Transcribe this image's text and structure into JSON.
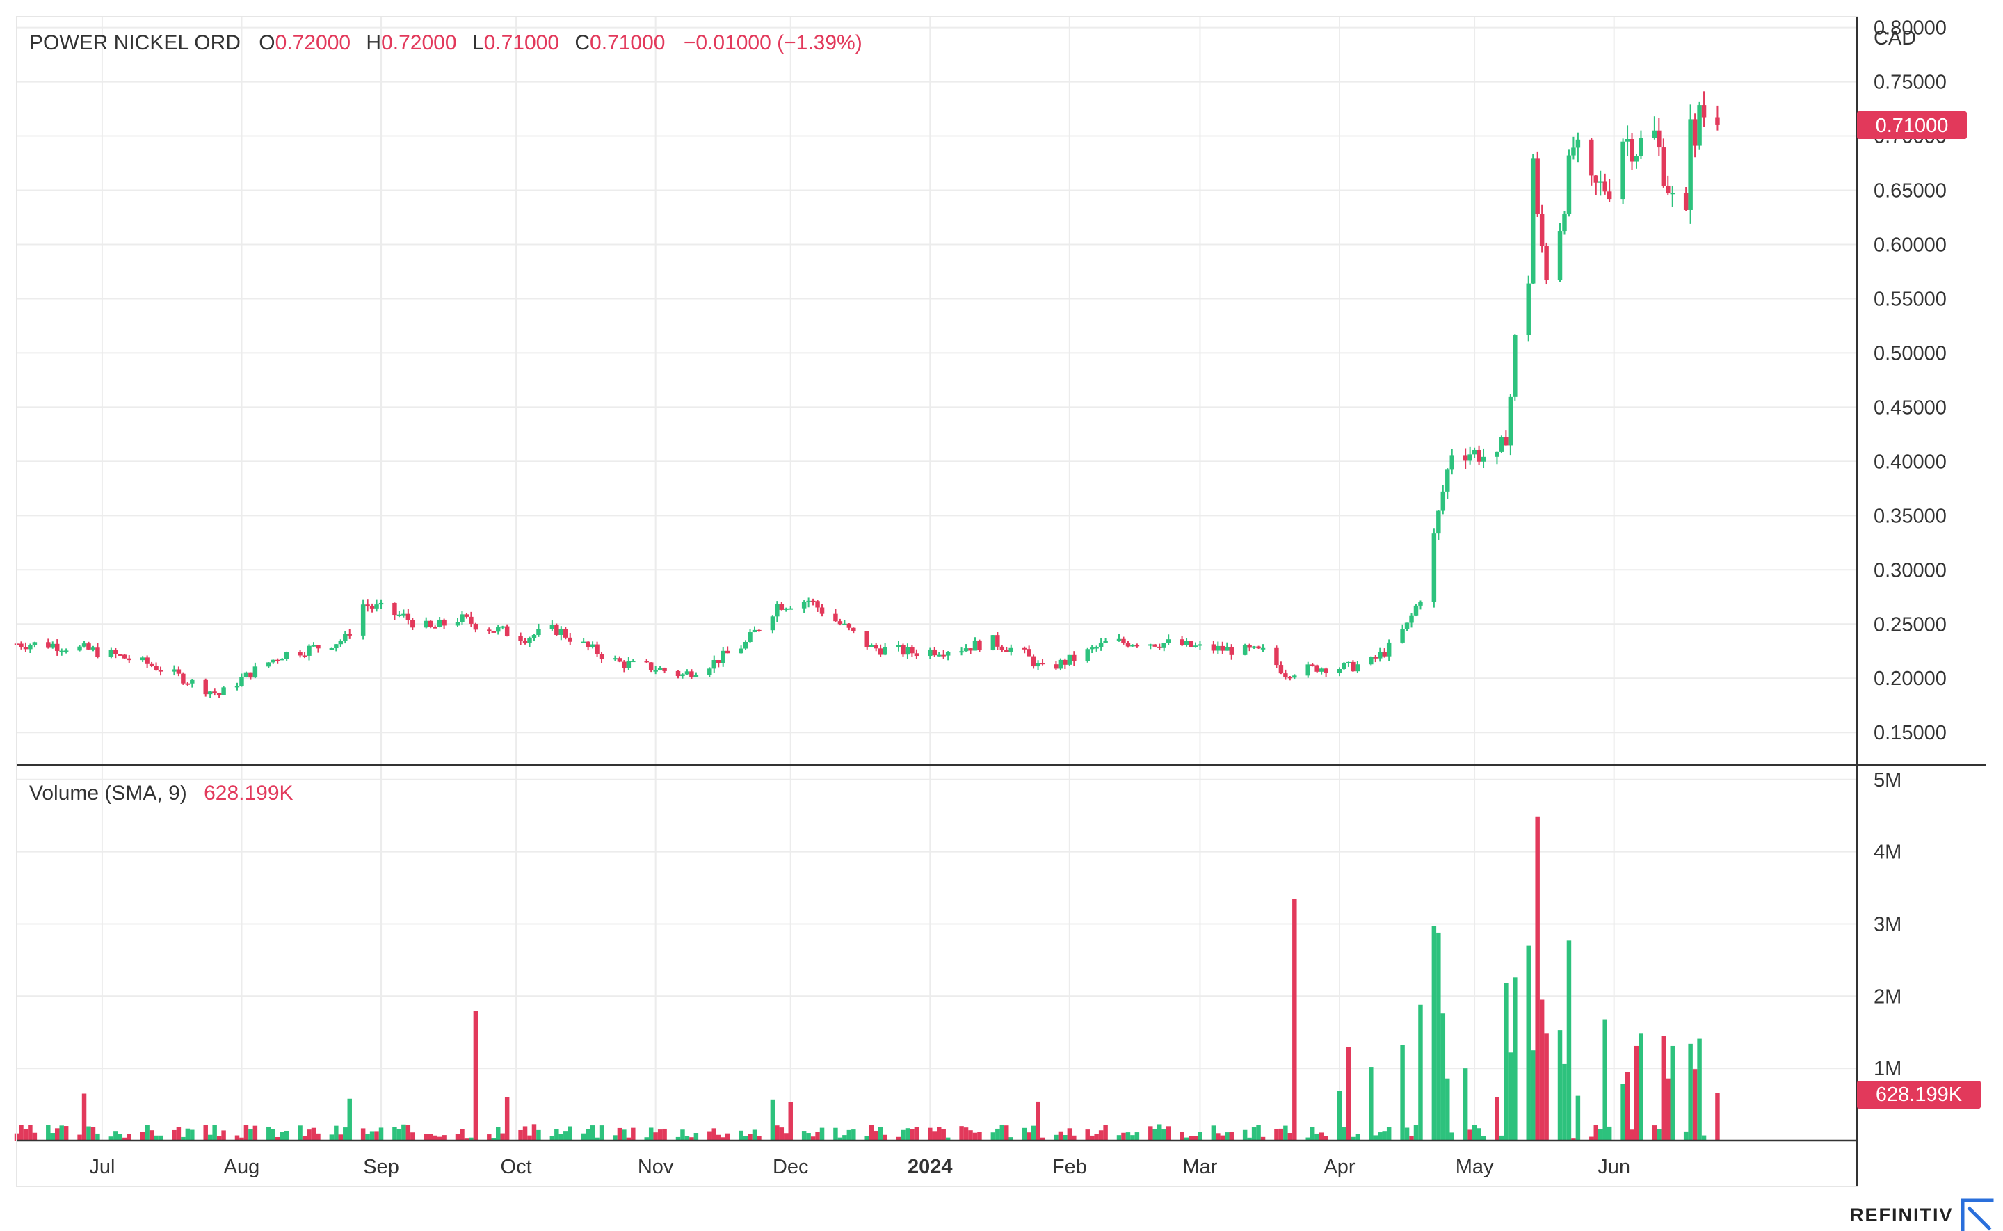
{
  "header": {
    "symbol": "POWER NICKEL ORD",
    "open_label": "O",
    "open_value": "0.72000",
    "high_label": "H",
    "high_value": "0.72000",
    "low_label": "L",
    "low_value": "0.71000",
    "close_label": "C",
    "close_value": "0.71000",
    "change": "−0.01000 (−1.39%)",
    "currency": "CAD"
  },
  "volume_legend": {
    "label": "Volume (SMA, 9)",
    "value": "628.199K"
  },
  "badges": {
    "price": "0.71000",
    "volume": "628.199K"
  },
  "brand": "REFINITIV",
  "colors": {
    "up": "#2dc27d",
    "down": "#e2395b",
    "accent": "#e2395b",
    "grid": "#ececec",
    "axis": "#333333"
  },
  "chart_data": [
    {
      "type": "candlestick",
      "title": "POWER NICKEL ORD",
      "y_axis_label": "CAD",
      "ylim": [
        0.12,
        0.81
      ],
      "yticks": [
        "0.15000",
        "0.20000",
        "0.25000",
        "0.30000",
        "0.35000",
        "0.40000",
        "0.45000",
        "0.50000",
        "0.55000",
        "0.60000",
        "0.65000",
        "0.70000",
        "0.75000",
        "0.80000"
      ],
      "x_ticks": [
        {
          "label": "Jul",
          "date": "2023-07-01"
        },
        {
          "label": "Aug",
          "date": "2023-08-01"
        },
        {
          "label": "Sep",
          "date": "2023-09-01"
        },
        {
          "label": "Oct",
          "date": "2023-10-01"
        },
        {
          "label": "Nov",
          "date": "2023-11-01"
        },
        {
          "label": "Dec",
          "date": "2023-12-01"
        },
        {
          "label": "2024",
          "date": "2024-01-01"
        },
        {
          "label": "Feb",
          "date": "2024-02-01"
        },
        {
          "label": "Mar",
          "date": "2024-03-01"
        },
        {
          "label": "Apr",
          "date": "2024-04-01"
        },
        {
          "label": "May",
          "date": "2024-05-01"
        },
        {
          "label": "Jun",
          "date": "2024-06-01"
        }
      ],
      "x_range": [
        "2023-06-12",
        "2024-07-25"
      ],
      "grid": true,
      "last_price": 0.71,
      "anchors": [
        {
          "date": "2023-06-12",
          "close": 0.232
        },
        {
          "date": "2023-06-20",
          "close": 0.231
        },
        {
          "date": "2023-06-28",
          "close": 0.226
        },
        {
          "date": "2023-07-05",
          "close": 0.22
        },
        {
          "date": "2023-07-12",
          "close": 0.212
        },
        {
          "date": "2023-07-19",
          "close": 0.2
        },
        {
          "date": "2023-07-24",
          "close": 0.19
        },
        {
          "date": "2023-07-27",
          "close": 0.185
        },
        {
          "date": "2023-08-03",
          "close": 0.205
        },
        {
          "date": "2023-08-10",
          "close": 0.222
        },
        {
          "date": "2023-08-17",
          "close": 0.228
        },
        {
          "date": "2023-08-24",
          "close": 0.236
        },
        {
          "date": "2023-08-28",
          "close": 0.268
        },
        {
          "date": "2023-09-05",
          "close": 0.258
        },
        {
          "date": "2023-09-12",
          "close": 0.245
        },
        {
          "date": "2023-09-18",
          "close": 0.255
        },
        {
          "date": "2023-09-26",
          "close": 0.245
        },
        {
          "date": "2023-10-03",
          "close": 0.238
        },
        {
          "date": "2023-10-10",
          "close": 0.245
        },
        {
          "date": "2023-10-17",
          "close": 0.228
        },
        {
          "date": "2023-10-24",
          "close": 0.214
        },
        {
          "date": "2023-10-31",
          "close": 0.21
        },
        {
          "date": "2023-11-07",
          "close": 0.203
        },
        {
          "date": "2023-11-14",
          "close": 0.215
        },
        {
          "date": "2023-11-21",
          "close": 0.232
        },
        {
          "date": "2023-11-28",
          "close": 0.268
        },
        {
          "date": "2023-12-05",
          "close": 0.272
        },
        {
          "date": "2023-12-12",
          "close": 0.25
        },
        {
          "date": "2023-12-19",
          "close": 0.228
        },
        {
          "date": "2023-12-28",
          "close": 0.224
        },
        {
          "date": "2024-01-08",
          "close": 0.228
        },
        {
          "date": "2024-01-15",
          "close": 0.234
        },
        {
          "date": "2024-01-22",
          "close": 0.222
        },
        {
          "date": "2024-01-26",
          "close": 0.208
        },
        {
          "date": "2024-02-02",
          "close": 0.218
        },
        {
          "date": "2024-02-09",
          "close": 0.232
        },
        {
          "date": "2024-02-16",
          "close": 0.234
        },
        {
          "date": "2024-02-23",
          "close": 0.232
        },
        {
          "date": "2024-03-01",
          "close": 0.228
        },
        {
          "date": "2024-03-08",
          "close": 0.226
        },
        {
          "date": "2024-03-15",
          "close": 0.224
        },
        {
          "date": "2024-03-20",
          "close": 0.205
        },
        {
          "date": "2024-03-27",
          "close": 0.21
        },
        {
          "date": "2024-04-03",
          "close": 0.21
        },
        {
          "date": "2024-04-08",
          "close": 0.215
        },
        {
          "date": "2024-04-12",
          "close": 0.228
        },
        {
          "date": "2024-04-16",
          "close": 0.248
        },
        {
          "date": "2024-04-19",
          "close": 0.275
        },
        {
          "date": "2024-04-22",
          "close": 0.33
        },
        {
          "date": "2024-04-24",
          "close": 0.372
        },
        {
          "date": "2024-04-26",
          "close": 0.41
        },
        {
          "date": "2024-05-01",
          "close": 0.408
        },
        {
          "date": "2024-05-06",
          "close": 0.4
        },
        {
          "date": "2024-05-08",
          "close": 0.425
        },
        {
          "date": "2024-05-09",
          "close": 0.46
        },
        {
          "date": "2024-05-10",
          "close": 0.51
        },
        {
          "date": "2024-05-13",
          "close": 0.57
        },
        {
          "date": "2024-05-14",
          "close": 0.68
        },
        {
          "date": "2024-05-15",
          "close": 0.62
        },
        {
          "date": "2024-05-17",
          "close": 0.575
        },
        {
          "date": "2024-05-20",
          "close": 0.62
        },
        {
          "date": "2024-05-23",
          "close": 0.69
        },
        {
          "date": "2024-05-27",
          "close": 0.65
        },
        {
          "date": "2024-05-31",
          "close": 0.655
        },
        {
          "date": "2024-06-03",
          "close": 0.7
        },
        {
          "date": "2024-06-06",
          "close": 0.69
        },
        {
          "date": "2024-06-10",
          "close": 0.7
        },
        {
          "date": "2024-06-12",
          "close": 0.67
        },
        {
          "date": "2024-06-14",
          "close": 0.64
        },
        {
          "date": "2024-06-17",
          "close": 0.62
        },
        {
          "date": "2024-06-18",
          "close": 0.73
        },
        {
          "date": "2024-06-19",
          "close": 0.68
        },
        {
          "date": "2024-06-20",
          "close": 0.73
        },
        {
          "date": "2024-06-21",
          "close": 0.72
        },
        {
          "date": "2024-06-24",
          "close": 0.71
        }
      ]
    },
    {
      "type": "bar",
      "title": "Volume (SMA, 9)",
      "ylim": [
        0,
        5200000
      ],
      "yticks": [
        "1M",
        "2M",
        "3M",
        "4M",
        "5M"
      ],
      "last_value": "628.199K",
      "baseline_volume": 120000,
      "spikes": [
        {
          "date": "2023-06-27",
          "volume": 650000,
          "color": "down"
        },
        {
          "date": "2023-08-25",
          "volume": 580000,
          "color": "up"
        },
        {
          "date": "2023-09-22",
          "volume": 1800000,
          "color": "down"
        },
        {
          "date": "2023-09-29",
          "volume": 600000,
          "color": "down"
        },
        {
          "date": "2023-11-27",
          "volume": 570000,
          "color": "up"
        },
        {
          "date": "2023-12-01",
          "volume": 530000,
          "color": "down"
        },
        {
          "date": "2024-01-25",
          "volume": 540000,
          "color": "down"
        },
        {
          "date": "2024-03-22",
          "volume": 3350000,
          "color": "down"
        },
        {
          "date": "2024-04-01",
          "volume": 690000,
          "color": "up"
        },
        {
          "date": "2024-04-03",
          "volume": 1300000,
          "color": "down"
        },
        {
          "date": "2024-04-08",
          "volume": 1020000,
          "color": "up"
        },
        {
          "date": "2024-04-15",
          "volume": 1320000,
          "color": "up"
        },
        {
          "date": "2024-04-19",
          "volume": 1880000,
          "color": "up"
        },
        {
          "date": "2024-04-22",
          "volume": 2970000,
          "color": "up"
        },
        {
          "date": "2024-04-23",
          "volume": 2880000,
          "color": "up"
        },
        {
          "date": "2024-04-24",
          "volume": 1760000,
          "color": "up"
        },
        {
          "date": "2024-04-25",
          "volume": 860000,
          "color": "up"
        },
        {
          "date": "2024-04-29",
          "volume": 1000000,
          "color": "up"
        },
        {
          "date": "2024-05-06",
          "volume": 600000,
          "color": "down"
        },
        {
          "date": "2024-05-08",
          "volume": 2180000,
          "color": "up"
        },
        {
          "date": "2024-05-09",
          "volume": 1220000,
          "color": "up"
        },
        {
          "date": "2024-05-10",
          "volume": 2260000,
          "color": "up"
        },
        {
          "date": "2024-05-13",
          "volume": 2700000,
          "color": "up"
        },
        {
          "date": "2024-05-14",
          "volume": 1250000,
          "color": "up"
        },
        {
          "date": "2024-05-15",
          "volume": 4480000,
          "color": "down"
        },
        {
          "date": "2024-05-16",
          "volume": 1950000,
          "color": "down"
        },
        {
          "date": "2024-05-17",
          "volume": 1480000,
          "color": "down"
        },
        {
          "date": "2024-05-20",
          "volume": 1530000,
          "color": "up"
        },
        {
          "date": "2024-05-21",
          "volume": 1060000,
          "color": "up"
        },
        {
          "date": "2024-05-22",
          "volume": 2770000,
          "color": "up"
        },
        {
          "date": "2024-05-24",
          "volume": 620000,
          "color": "up"
        },
        {
          "date": "2024-05-30",
          "volume": 1680000,
          "color": "up"
        },
        {
          "date": "2024-06-03",
          "volume": 780000,
          "color": "up"
        },
        {
          "date": "2024-06-04",
          "volume": 950000,
          "color": "down"
        },
        {
          "date": "2024-06-06",
          "volume": 1310000,
          "color": "down"
        },
        {
          "date": "2024-06-07",
          "volume": 1480000,
          "color": "up"
        },
        {
          "date": "2024-06-12",
          "volume": 1450000,
          "color": "down"
        },
        {
          "date": "2024-06-13",
          "volume": 860000,
          "color": "down"
        },
        {
          "date": "2024-06-14",
          "volume": 1310000,
          "color": "up"
        },
        {
          "date": "2024-06-18",
          "volume": 1340000,
          "color": "up"
        },
        {
          "date": "2024-06-19",
          "volume": 990000,
          "color": "down"
        },
        {
          "date": "2024-06-20",
          "volume": 1410000,
          "color": "up"
        },
        {
          "date": "2024-06-24",
          "volume": 660000,
          "color": "down"
        }
      ]
    }
  ]
}
